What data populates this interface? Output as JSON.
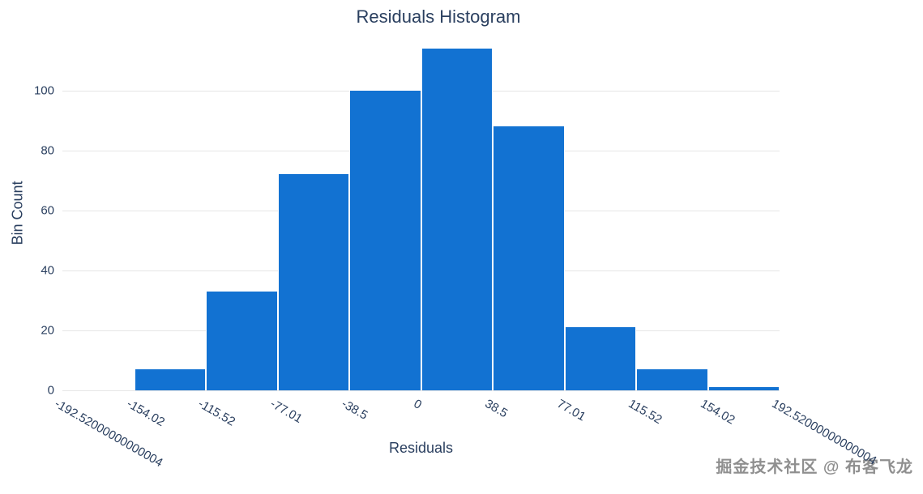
{
  "chart_data": {
    "type": "bar",
    "subtype": "histogram",
    "title": "Residuals Histogram",
    "xlabel": "Residuals",
    "ylabel": "Bin Count",
    "x_tick_labels": [
      "-192.52000000000004",
      "-154.02",
      "-115.52",
      "-77.01",
      "-38.5",
      "0",
      "38.5",
      "77.01",
      "115.52",
      "154.02",
      "192.52000000000004"
    ],
    "bin_edges": [
      -192.52000000000004,
      -154.02,
      -115.52,
      -77.01,
      -38.5,
      0,
      38.5,
      77.01,
      115.52,
      154.02,
      192.52000000000004
    ],
    "values": [
      0,
      7,
      33,
      72,
      100,
      114,
      88,
      21,
      7,
      1
    ],
    "y_ticks": [
      0,
      20,
      40,
      60,
      80,
      100
    ],
    "ylim": [
      0,
      118
    ],
    "grid": true,
    "legend": "none",
    "bar_color": "#1272d2",
    "gridline_color": "#e6e6e6",
    "text_color": "#2a3f5f",
    "background": "#ffffff"
  },
  "watermark": {
    "text": "掘金技术社区 @ 布客飞龙"
  }
}
